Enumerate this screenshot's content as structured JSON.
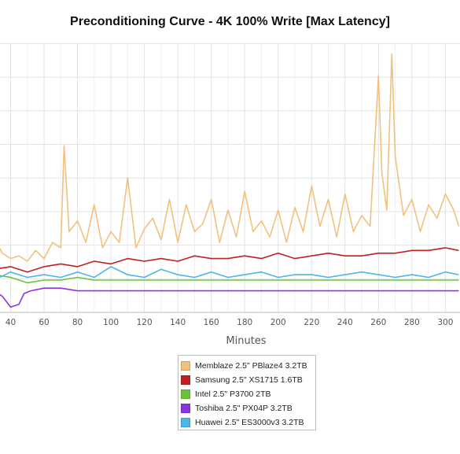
{
  "chart_data": {
    "type": "line",
    "title": "Preconditioning Curve - 4K 100% Write [Max Latency]",
    "xlabel": "Minutes",
    "ylabel": "",
    "x_ticks": [
      40,
      60,
      80,
      100,
      120,
      140,
      160,
      180,
      200,
      220,
      240,
      260,
      280,
      300
    ],
    "x_range": [
      30,
      308
    ],
    "y_range": [
      0,
      100
    ],
    "grid": true,
    "legend_position": "bottom-center",
    "series": [
      {
        "name": "Memblaze 2.5\" PBlaze4 3.2TB",
        "color": "#f0c27e",
        "x": [
          30,
          35,
          40,
          45,
          50,
          55,
          60,
          65,
          70,
          72,
          75,
          80,
          85,
          90,
          95,
          100,
          105,
          110,
          115,
          120,
          125,
          130,
          135,
          140,
          145,
          150,
          155,
          160,
          165,
          170,
          175,
          180,
          185,
          190,
          195,
          200,
          205,
          210,
          215,
          220,
          225,
          230,
          235,
          240,
          245,
          250,
          255,
          260,
          262,
          265,
          268,
          270,
          275,
          280,
          285,
          290,
          295,
          300,
          305,
          308
        ],
        "values": [
          28,
          22,
          20,
          21,
          19,
          23,
          20,
          26,
          24,
          62,
          30,
          34,
          26,
          40,
          24,
          30,
          26,
          50,
          24,
          31,
          35,
          27,
          42,
          26,
          40,
          30,
          33,
          42,
          26,
          38,
          28,
          45,
          30,
          34,
          28,
          38,
          26,
          39,
          30,
          47,
          32,
          42,
          28,
          44,
          30,
          36,
          32,
          88,
          52,
          38,
          96,
          58,
          36,
          42,
          30,
          40,
          35,
          44,
          38,
          32
        ]
      },
      {
        "name": "Samsung 2.5\" XS1715 1.6TB",
        "color": "#c0201f",
        "x": [
          30,
          40,
          50,
          60,
          70,
          80,
          90,
          100,
          110,
          120,
          130,
          140,
          150,
          160,
          170,
          180,
          190,
          200,
          210,
          220,
          230,
          240,
          250,
          260,
          270,
          280,
          290,
          300,
          308
        ],
        "values": [
          16,
          17,
          15,
          17,
          18,
          17,
          19,
          18,
          20,
          19,
          20,
          19,
          21,
          20,
          20,
          21,
          20,
          22,
          20,
          21,
          22,
          21,
          21,
          22,
          22,
          23,
          23,
          24,
          23
        ]
      },
      {
        "name": "Intel 2.5\" P3700 2TB",
        "color": "#6cc23a",
        "x": [
          30,
          40,
          50,
          60,
          70,
          80,
          90,
          100,
          110,
          120,
          130,
          140,
          150,
          160,
          170,
          180,
          190,
          200,
          210,
          220,
          230,
          240,
          250,
          260,
          270,
          280,
          290,
          300,
          308
        ],
        "values": [
          14,
          13,
          11,
          12,
          12,
          13,
          12,
          12,
          12,
          12,
          12,
          12,
          12,
          12,
          12,
          12,
          12,
          12,
          12,
          12,
          12,
          12,
          12,
          12,
          12,
          12,
          12,
          12,
          12
        ]
      },
      {
        "name": "Toshiba 2.5\" PX04P 3.2TB",
        "color": "#8b35e0",
        "x": [
          30,
          35,
          40,
          45,
          48,
          52,
          60,
          70,
          80,
          90,
          100,
          110,
          120,
          130,
          140,
          150,
          160,
          170,
          180,
          190,
          200,
          210,
          220,
          230,
          240,
          250,
          260,
          270,
          280,
          290,
          300,
          308
        ],
        "values": [
          8,
          6,
          2,
          3,
          7,
          8,
          9,
          9,
          8,
          8,
          8,
          8,
          8,
          8,
          8,
          8,
          8,
          8,
          8,
          8,
          8,
          8,
          8,
          8,
          8,
          8,
          8,
          8,
          8,
          8,
          8,
          8
        ]
      },
      {
        "name": "Huawei 2.5\" ES3000v3 3.2TB",
        "color": "#4bb6e8",
        "x": [
          30,
          40,
          50,
          60,
          70,
          80,
          90,
          100,
          110,
          120,
          130,
          140,
          150,
          160,
          170,
          180,
          190,
          200,
          210,
          220,
          230,
          240,
          250,
          260,
          270,
          280,
          290,
          300,
          308
        ],
        "values": [
          12,
          15,
          13,
          14,
          13,
          15,
          13,
          17,
          14,
          13,
          16,
          14,
          13,
          15,
          13,
          14,
          15,
          13,
          14,
          14,
          13,
          14,
          15,
          14,
          13,
          14,
          13,
          15,
          14
        ]
      }
    ]
  }
}
